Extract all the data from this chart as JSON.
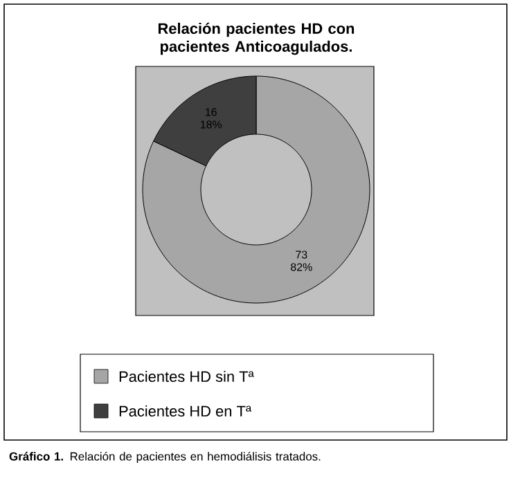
{
  "chart_data": {
    "type": "donut",
    "title": "Relación pacientes HD con pacientes Anticoagulados.",
    "categories": [
      "Pacientes HD sin Tª",
      "Pacientes HD en Tª"
    ],
    "values": [
      73,
      16
    ],
    "colors": [
      "#a6a6a6",
      "#3f3f3f"
    ],
    "value_labels": [
      "73 82%",
      "16 18%"
    ],
    "legend": "bottom",
    "annotations": [
      "**Gráfico 1.** Relación de pacientes en hemodiálisis tratados."
    ]
  }
}
